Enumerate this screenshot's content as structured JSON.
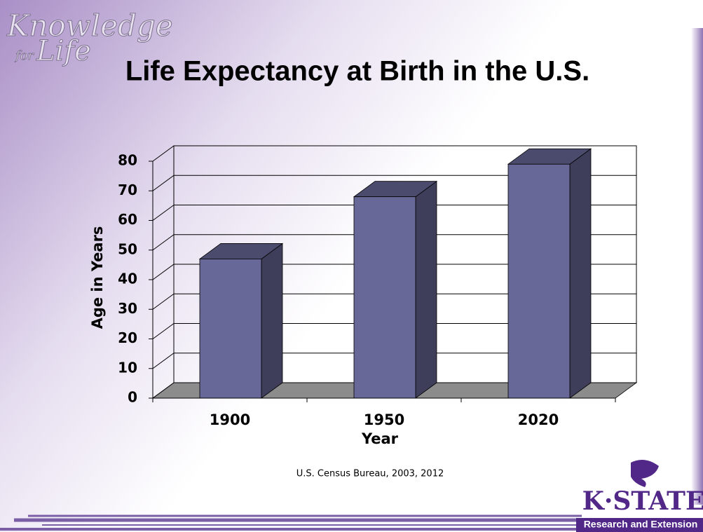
{
  "branding": {
    "tagline_top": "Knowledge",
    "tagline_small": "for",
    "tagline_bottom": "Life",
    "name": "K·STATE",
    "subtitle": "Research and Extension"
  },
  "chart_data": {
    "type": "bar3d",
    "title": "Life Expectancy at Birth in the U.S.",
    "x_label": "Year",
    "y_label": "Age in Years",
    "categories": [
      "1900",
      "1950",
      "2020"
    ],
    "series": [
      {
        "name": "Life expectancy",
        "color": "#686898",
        "values": [
          47,
          68,
          79
        ]
      }
    ],
    "ylim": [
      0,
      80
    ],
    "yticks": [
      0,
      10,
      20,
      30,
      40,
      50,
      60,
      70,
      80
    ],
    "grid": true,
    "source": "U.S. Census Bureau, 2003, 2012"
  }
}
